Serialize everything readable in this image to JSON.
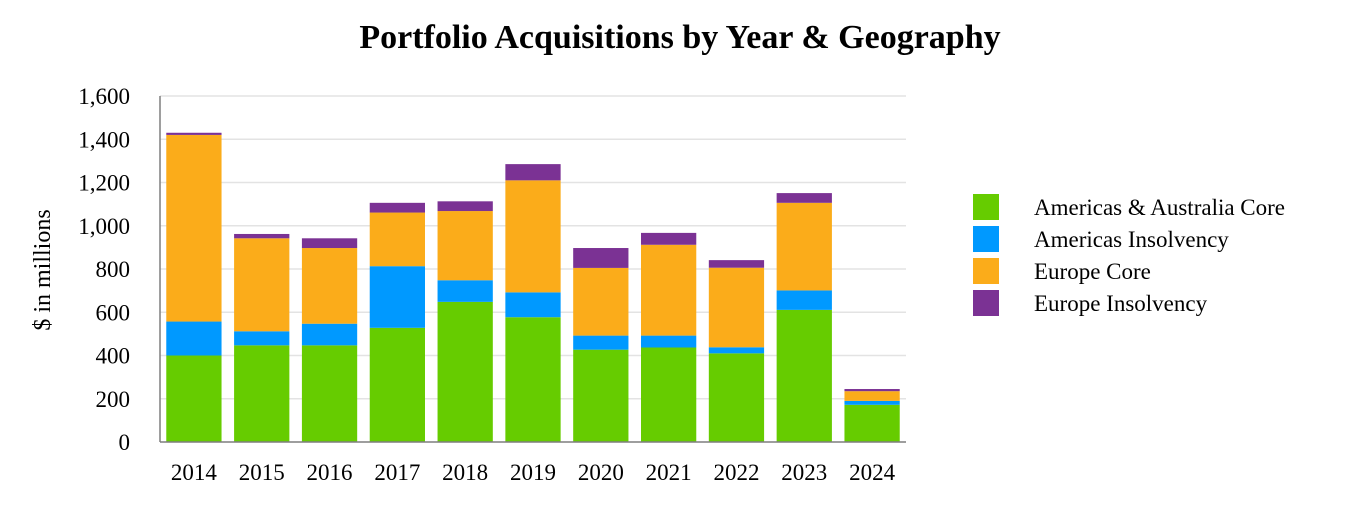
{
  "chart_data": {
    "type": "bar",
    "stacked": true,
    "title": "Portfolio Acquisitions by Year & Geography",
    "ylabel": "$ in millions",
    "xlabel": "",
    "ylim": [
      0,
      1600
    ],
    "yticks": [
      0,
      200,
      400,
      600,
      800,
      1000,
      1200,
      1400,
      1600
    ],
    "ytick_labels": [
      "0",
      "200",
      "400",
      "600",
      "800",
      "1,000",
      "1,200",
      "1,400",
      "1,600"
    ],
    "grid": true,
    "legend_position": "right",
    "categories": [
      "2014",
      "2015",
      "2016",
      "2017",
      "2018",
      "2019",
      "2020",
      "2021",
      "2022",
      "2023",
      "2024"
    ],
    "series": [
      {
        "name": "Americas & Australia Core",
        "color": "#66cc00",
        "values": [
          400,
          447,
          447,
          528,
          648,
          577,
          427,
          437,
          410,
          611,
          172
        ]
      },
      {
        "name": "Americas Insolvency",
        "color": "#0099ff",
        "values": [
          157,
          65,
          100,
          285,
          100,
          115,
          65,
          55,
          28,
          90,
          18
        ]
      },
      {
        "name": "Europe Core",
        "color": "#fbac1a",
        "values": [
          863,
          430,
          350,
          248,
          320,
          518,
          313,
          420,
          368,
          405,
          45
        ]
      },
      {
        "name": "Europe Insolvency",
        "color": "#7b3294",
        "values": [
          10,
          20,
          45,
          45,
          45,
          75,
          92,
          55,
          35,
          45,
          10
        ]
      }
    ]
  }
}
